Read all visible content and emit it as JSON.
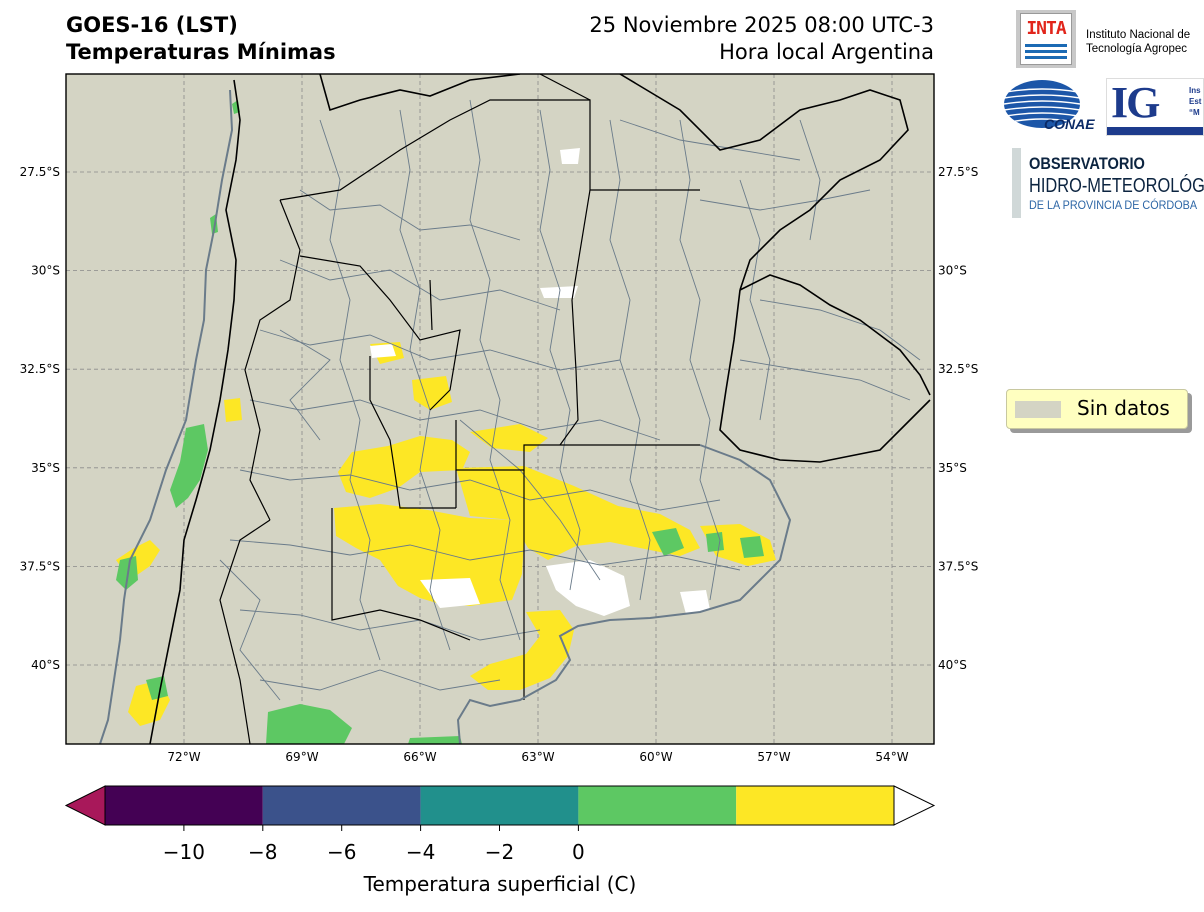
{
  "header": {
    "title_line1": "GOES-16 (LST)",
    "title_line2": "Temperaturas Mínimas",
    "date_line": "25 Noviembre 2025 08:00 UTC-3",
    "timezone_line": "Hora local Argentina"
  },
  "map": {
    "background_color": "#d4d4c4",
    "gridline_style": "dashed",
    "lon_ticks": [
      {
        "value": -72,
        "label": "72°W"
      },
      {
        "value": -69,
        "label": "69°W"
      },
      {
        "value": -66,
        "label": "66°W"
      },
      {
        "value": -63,
        "label": "63°W"
      },
      {
        "value": -60,
        "label": "60°W"
      },
      {
        "value": -57,
        "label": "57°W"
      },
      {
        "value": -54,
        "label": "54°W"
      }
    ],
    "lat_ticks": [
      {
        "value": -27.5,
        "label": "27.5°S"
      },
      {
        "value": -30,
        "label": "30°S"
      },
      {
        "value": -32.5,
        "label": "32.5°S"
      },
      {
        "value": -35,
        "label": "35°S"
      },
      {
        "value": -37.5,
        "label": "37.5°S"
      },
      {
        "value": -40,
        "label": "40°S"
      }
    ]
  },
  "legend": {
    "label": "Sin datos",
    "swatch_color": "#d4d4c4"
  },
  "colorbar": {
    "label": "Temperatura superficial (C)",
    "ticks": [
      "−10",
      "−8",
      "−6",
      "−4",
      "−2",
      "0"
    ],
    "under_color": "#a8185a",
    "over_color": "#ffffff",
    "colors": [
      "#440154",
      "#3b528b",
      "#21908c",
      "#5dc863",
      "#fde725"
    ],
    "bounds": [
      -12,
      -8,
      -4,
      0,
      4,
      8
    ]
  },
  "logos": {
    "inta": "INTA",
    "inta_name_line1": "Instituto Nacional de",
    "inta_name_line2": "Tecnología Agropec",
    "conae": "CONAE",
    "ig": "IG",
    "ig_side_line1": "Ins",
    "ig_side_line2": "Est",
    "ig_side_line3": "“M",
    "obs_line1": "OBSERVATORIO",
    "obs_line2": "HIDRO-METEOROLÓG",
    "obs_line3": "DE LA PROVINCIA DE CÓRDOBA"
  }
}
